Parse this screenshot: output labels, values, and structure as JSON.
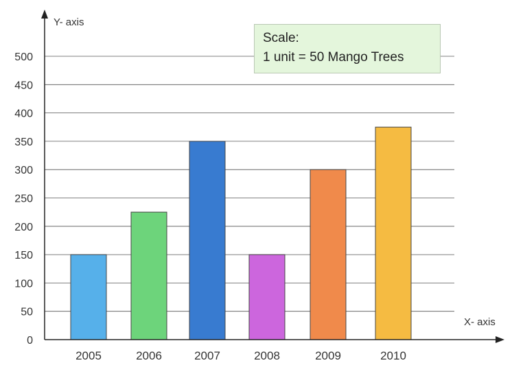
{
  "chart_data": {
    "type": "bar",
    "title": "",
    "xlabel": "X- axis",
    "ylabel": "Y- axis",
    "categories": [
      "2005",
      "2006",
      "2007",
      "2008",
      "2009",
      "2010"
    ],
    "values": [
      150,
      225,
      350,
      150,
      300,
      375
    ],
    "colors": [
      "#56b0ea",
      "#6dd47b",
      "#387bd0",
      "#cc66dd",
      "#f08a4b",
      "#f5bb42"
    ],
    "yticks": [
      0,
      50,
      100,
      150,
      200,
      250,
      300,
      350,
      400,
      450,
      500
    ],
    "ylim": [
      0,
      500
    ],
    "grid": true,
    "legend": "none"
  },
  "scale_note": {
    "heading": "Scale:",
    "text": "1 unit = 50 Mango Trees"
  }
}
